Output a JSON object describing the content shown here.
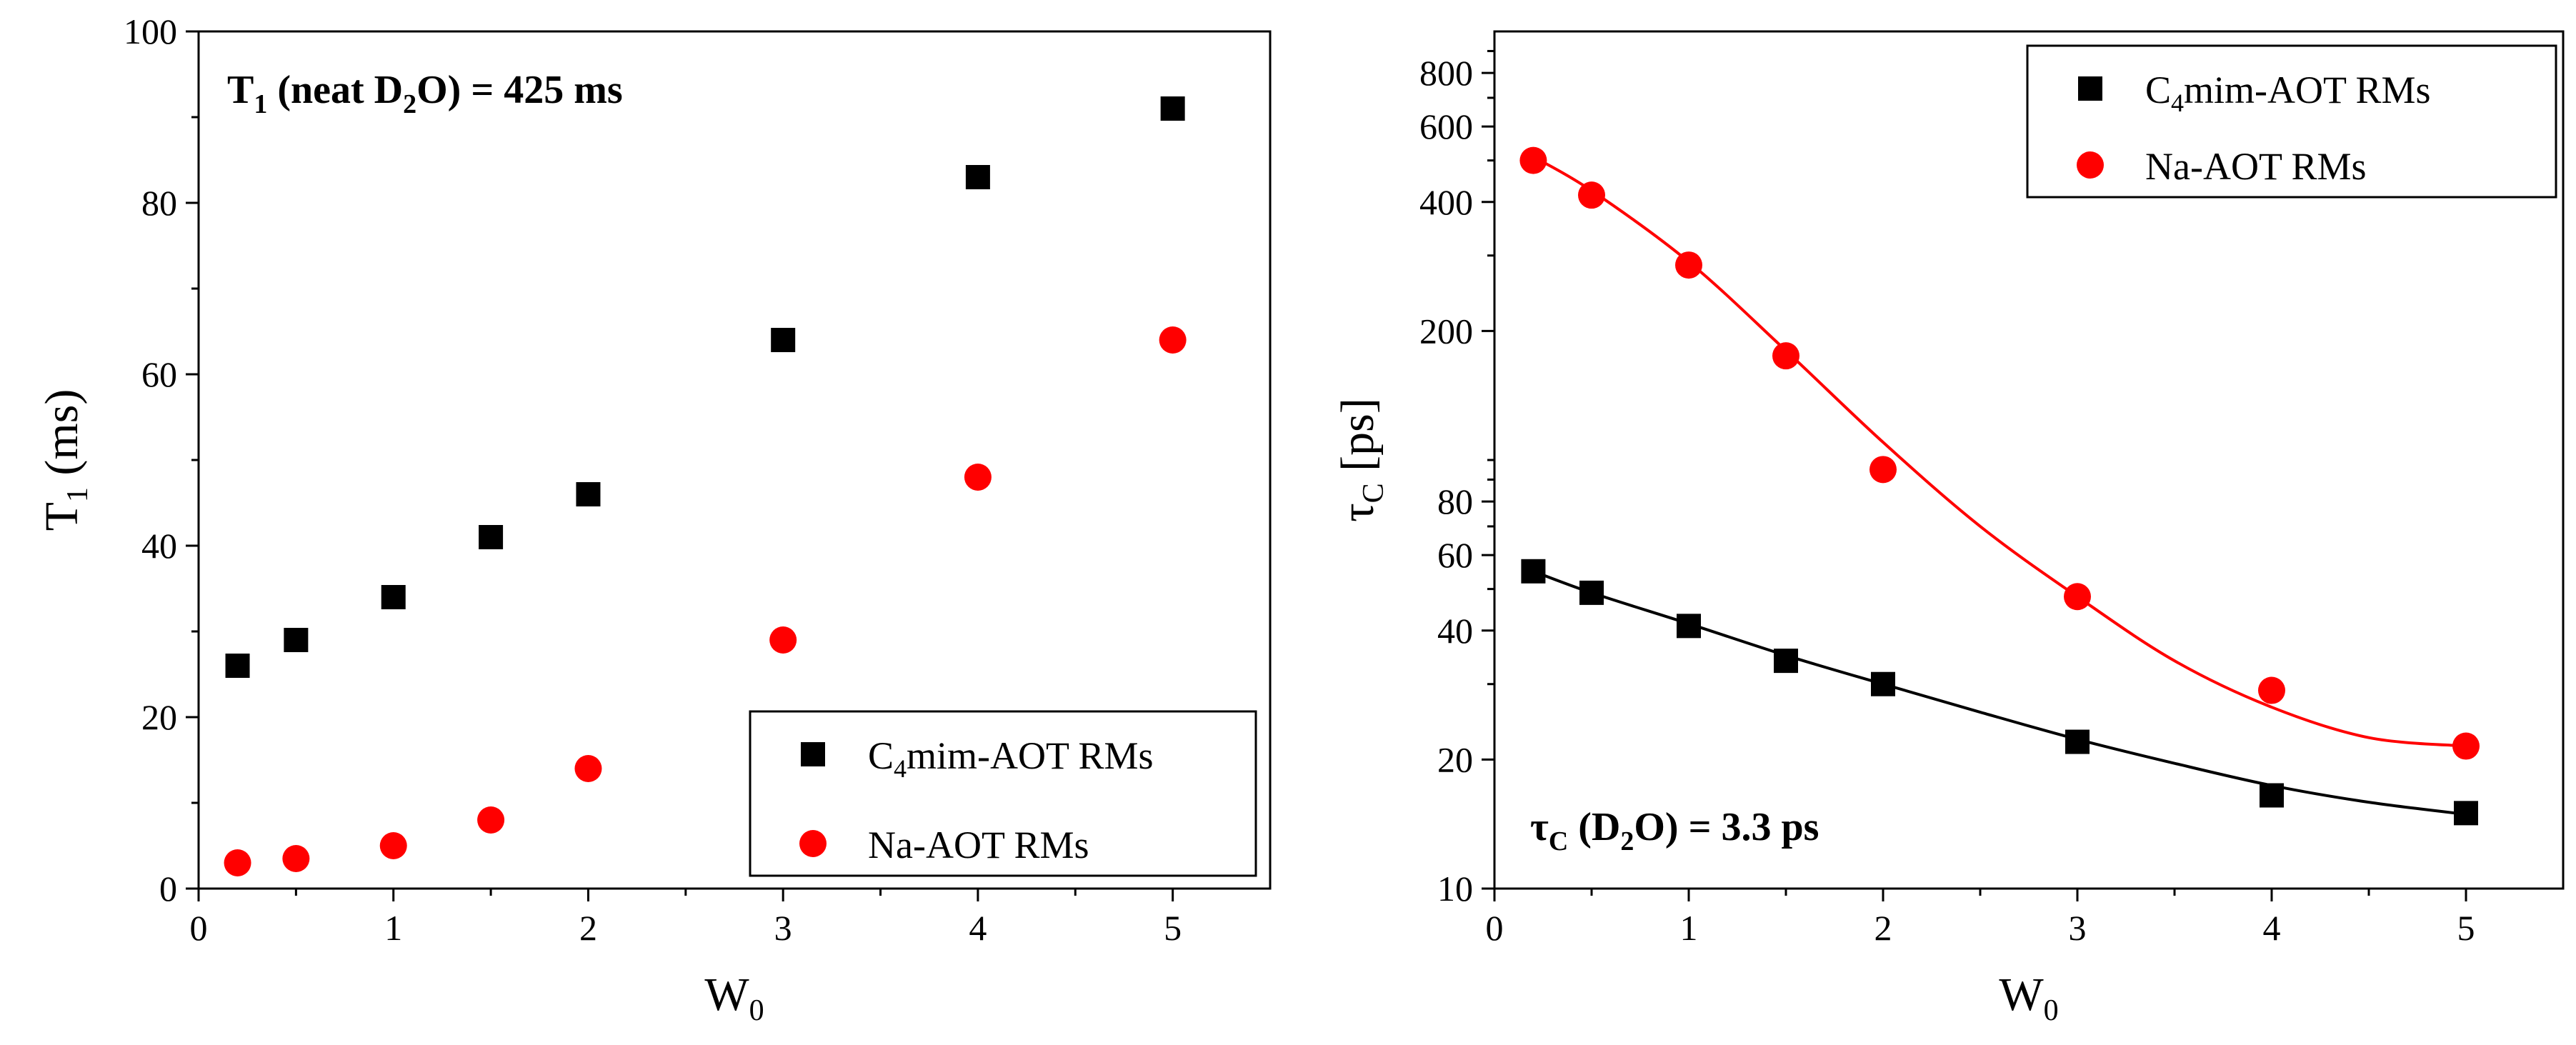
{
  "chart_data": [
    {
      "type": "scatter",
      "panel": "left",
      "xlabel": "W",
      "xlabel_sub": "0",
      "ylabel": "T",
      "ylabel_sub": "1",
      "ylabel_rest": " (ms)",
      "xlim": [
        0,
        5.5
      ],
      "ylim": [
        0,
        100
      ],
      "x_major_ticks": [
        0,
        1,
        2,
        3,
        4,
        5
      ],
      "x_tick_labels": [
        "0",
        "1",
        "2",
        "3",
        "4",
        "5"
      ],
      "y_major_ticks": [
        0,
        20,
        40,
        60,
        80,
        100
      ],
      "y_tick_labels": [
        "0",
        "20",
        "40",
        "60",
        "80",
        "100"
      ],
      "x_minor_ticks": [
        0.5,
        1.5,
        2.5,
        3.5,
        4.5
      ],
      "y_minor_ticks": [
        10,
        30,
        50,
        70,
        90
      ],
      "annotation": {
        "pre": "T",
        "sub1": "1",
        "mid": " (neat D",
        "sub2": "2",
        "post": "O) = 425 ms"
      },
      "legend": {
        "position": "bottom-right",
        "entries": [
          {
            "pre": "C",
            "sub": "4",
            "post": "mim-AOT RMs",
            "marker": "square",
            "color": "#000000"
          },
          {
            "pre": "Na-AOT RMs",
            "sub": "",
            "post": "",
            "marker": "circle",
            "color": "#ff0000"
          }
        ]
      },
      "series": [
        {
          "name": "C4mim-AOT RMs",
          "marker": "square",
          "color": "#000000",
          "x": [
            0.2,
            0.5,
            1,
            1.5,
            2,
            3,
            4,
            5
          ],
          "y": [
            26,
            29,
            34,
            41,
            46,
            64,
            83,
            91
          ]
        },
        {
          "name": "Na-AOT RMs",
          "marker": "circle",
          "color": "#ff0000",
          "x": [
            0.2,
            0.5,
            1,
            1.5,
            2,
            3,
            4,
            5
          ],
          "y": [
            3,
            3.5,
            5,
            8,
            14,
            29,
            48,
            64
          ]
        }
      ]
    },
    {
      "type": "scatter",
      "panel": "right",
      "yscale": "log",
      "xlabel": "W",
      "xlabel_sub": "0",
      "ylabel": "τ",
      "ylabel_sub": "C",
      "ylabel_rest": " [ps]",
      "xlim": [
        0,
        5.5
      ],
      "ylim": [
        10,
        1000
      ],
      "x_major_ticks": [
        0,
        1,
        2,
        3,
        4,
        5
      ],
      "x_tick_labels": [
        "0",
        "1",
        "2",
        "3",
        "4",
        "5"
      ],
      "x_minor_ticks": [
        0.5,
        1.5,
        2.5,
        3.5,
        4.5
      ],
      "y_major_ticks": [
        10,
        20,
        40,
        60,
        80,
        200,
        400,
        600,
        800
      ],
      "y_tick_labels": [
        "10",
        "20",
        "40",
        "60",
        "80",
        "200",
        "400",
        "600",
        "800"
      ],
      "y_minor_ticks": [
        30,
        50,
        70,
        90,
        100,
        300,
        500,
        700,
        900
      ],
      "annotation": {
        "pre": "τ",
        "sub1": "C",
        "mid": " (D",
        "sub2": "2",
        "post": "O) = 3.3 ps"
      },
      "legend": {
        "position": "top-right",
        "entries": [
          {
            "pre": "C",
            "sub": "4",
            "post": "mim-AOT RMs",
            "marker": "square",
            "color": "#000000"
          },
          {
            "pre": "Na-AOT RMs",
            "sub": "",
            "post": "",
            "marker": "circle",
            "color": "#ff0000"
          }
        ]
      },
      "series": [
        {
          "name": "C4mim-AOT RMs",
          "marker": "square",
          "color": "#000000",
          "x": [
            0.2,
            0.5,
            1,
            1.5,
            2,
            3,
            4,
            5
          ],
          "y": [
            55,
            49,
            41,
            34,
            30,
            22,
            16.5,
            15
          ]
        },
        {
          "name": "Na-AOT RMs",
          "marker": "circle",
          "color": "#ff0000",
          "x": [
            0.2,
            0.5,
            1,
            1.5,
            2,
            3,
            4,
            5
          ],
          "y": [
            500,
            415,
            285,
            175,
            95,
            48,
            29,
            21.5
          ]
        }
      ],
      "fits": [
        {
          "name": "C4mim-AOT RMs fit",
          "color": "#000000",
          "x": [
            0.2,
            0.5,
            1,
            1.5,
            2,
            2.5,
            3,
            3.5,
            4,
            4.5,
            5
          ],
          "y": [
            55,
            49,
            41.5,
            35,
            30,
            25.8,
            22.3,
            19.6,
            17.4,
            15.9,
            14.9
          ]
        },
        {
          "name": "Na-AOT RMs fit",
          "color": "#ff0000",
          "x": [
            0.2,
            0.5,
            1,
            1.5,
            2,
            2.5,
            3,
            3.5,
            4,
            4.5,
            5
          ],
          "y": [
            510,
            425,
            290,
            180,
            110,
            70,
            48,
            34,
            26.5,
            22.5,
            21.5
          ]
        }
      ]
    }
  ]
}
